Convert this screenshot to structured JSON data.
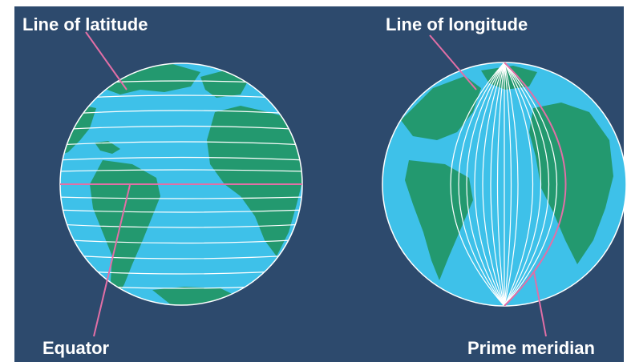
{
  "labels": {
    "latitude": "Line of latitude",
    "longitude": "Line of longitude",
    "equator": "Equator",
    "prime_meridian": "Prime meridian"
  },
  "colors": {
    "background": "#2d4a6d",
    "ocean": "#3ec1e9",
    "land": "#23996f",
    "grid_line": "#ffffff",
    "highlight_line": "#e26fa6",
    "label_text": "#ffffff"
  }
}
